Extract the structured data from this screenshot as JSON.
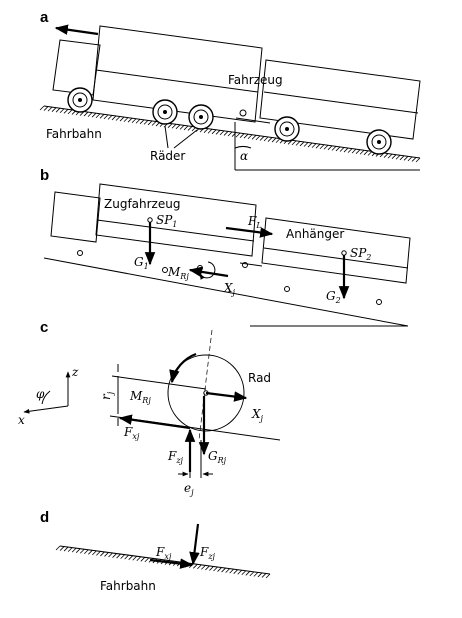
{
  "panels": {
    "a": {
      "letter": "a",
      "vehicle_label": "Fahrzeug",
      "road_label": "Fahrbahn",
      "wheels_label": "Räder",
      "angle_label": "α"
    },
    "b": {
      "letter": "b",
      "towing_vehicle_label": "Zugfahrzeug",
      "trailer_label": "Anhänger",
      "sp1": "SP",
      "sp1_sub": "1",
      "sp2": "SP",
      "sp2_sub": "2",
      "fl": "F",
      "fl_sub": "L",
      "g1": "G",
      "g1_sub": "1",
      "g2": "G",
      "g2_sub": "2",
      "mrj": "M",
      "mrj_sub": "Rj",
      "xj": "X",
      "xj_sub": "j"
    },
    "c": {
      "letter": "c",
      "wheel_label": "Rad",
      "axis_z": "z",
      "axis_x": "x",
      "phi": "φ",
      "rj": "r",
      "rj_sub": "j",
      "mrj": "M",
      "mrj_sub": "Rj",
      "xj": "X",
      "xj_sub": "j",
      "fxj": "F",
      "fxj_sub": "xj",
      "fzj": "F",
      "fzj_sub": "zj",
      "grj": "G",
      "grj_sub": "Rj",
      "ej": "e",
      "ej_sub": "j"
    },
    "d": {
      "letter": "d",
      "road_label": "Fahrbahn",
      "fxj": "F",
      "fxj_sub": "xj",
      "fzj": "F",
      "fzj_sub": "zj"
    }
  }
}
